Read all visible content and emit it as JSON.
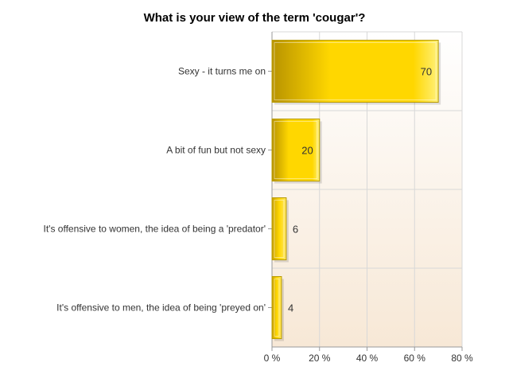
{
  "chart_data": {
    "type": "bar",
    "orientation": "horizontal",
    "title": "What is your view of the term 'cougar'?",
    "categories": [
      "Sexy - it turns me on",
      "A bit of fun but not sexy",
      "It's offensive to women, the idea of being a 'predator'",
      "It's offensive to men, the idea of being 'preyed on'"
    ],
    "values": [
      70,
      20,
      6,
      4
    ],
    "xlim": [
      0,
      80
    ],
    "xticks": [
      0,
      20,
      40,
      60,
      80
    ],
    "xtick_labels": [
      "0 %",
      "20 %",
      "40 %",
      "60 %",
      "80 %"
    ],
    "grid": true,
    "legend": "none",
    "colors": {
      "bar_fill": "#ffd700",
      "bar_dark": "#c8a000",
      "bar_light": "#fff07a",
      "bar_border": "#b89b00",
      "plot_bg_top": "#ffffff",
      "plot_bg_bottom": "#f7e8d6",
      "grid": "#d8d8d8"
    }
  }
}
